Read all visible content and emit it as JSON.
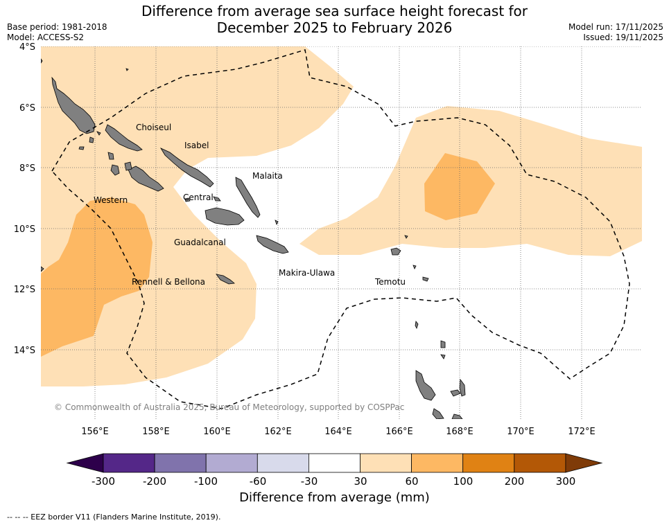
{
  "title_line1": "Difference from average sea surface height forecast for",
  "title_line2": "December 2025 to February 2026",
  "meta_left": [
    "Base period: 1981-2018",
    "Model: ACCESS-S2"
  ],
  "meta_right": [
    "Model run: 17/11/2025",
    "Issued: 19/11/2025"
  ],
  "lat_labels": [
    "4°S",
    "6°S",
    "8°S",
    "10°S",
    "12°S",
    "14°S"
  ],
  "lon_labels": [
    "156°E",
    "158°E",
    "160°E",
    "162°E",
    "164°E",
    "166°E",
    "168°E",
    "170°E",
    "172°E"
  ],
  "regions": [
    "Choiseul",
    "Isabel",
    "Malaita",
    "Western",
    "Central",
    "Guadalcanal",
    "Makira-Ulawa",
    "Rennell & Bellona",
    "Temotu"
  ],
  "copyright": "© Commonwealth of Australia 2025, Bureau of Meteorology, supported by COSPPac",
  "colorbar": {
    "title": "Difference from average (mm)",
    "ticks": [
      "-300",
      "-200",
      "-100",
      "-60",
      "-30",
      "30",
      "60",
      "100",
      "200",
      "300"
    ],
    "colors": [
      "#2d004b",
      "#542788",
      "#8073ac",
      "#b2abd2",
      "#d8daeb",
      "#ffffff",
      "#fee0b6",
      "#fdb863",
      "#e08214",
      "#b35806",
      "#7f3b08"
    ]
  },
  "eez_note": "--  --  -- EEZ border V11 (Flanders Marine Institute, 2019).",
  "colors": {
    "light_orange": "#fee0b6",
    "medium_orange": "#fdb863",
    "land": "#808080"
  }
}
